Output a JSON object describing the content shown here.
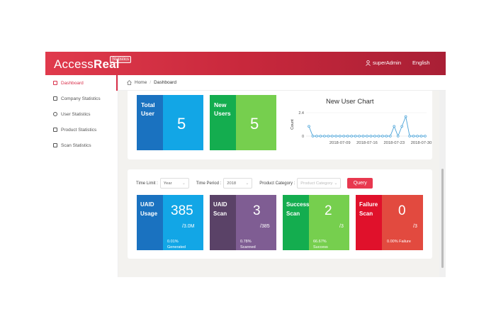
{
  "header": {
    "logo_light": "Access",
    "logo_bold": "Real",
    "logo_tag": "Statistics",
    "user": "superAdmin",
    "language": "English"
  },
  "sidebar": {
    "items": [
      {
        "label": "Dashboard",
        "icon": "monitor-icon"
      },
      {
        "label": "Company Statistics",
        "icon": "building-icon"
      },
      {
        "label": "User Statistics",
        "icon": "user-icon"
      },
      {
        "label": "Product Statistics",
        "icon": "grid-icon"
      },
      {
        "label": "Scan Statistics",
        "icon": "scan-icon"
      }
    ]
  },
  "breadcrumb": {
    "home": "Home",
    "sep": "/",
    "current": "Dashboard"
  },
  "summary": {
    "total_users": {
      "label_1": "Total",
      "label_2": "User",
      "value": "5",
      "color_label": "#1a72c0",
      "color_value": "#12a6e6"
    },
    "new_users": {
      "label_1": "New",
      "label_2": "Users",
      "value": "5",
      "color_label": "#14ad4f",
      "color_value": "#76cf4e"
    }
  },
  "chart_data": {
    "type": "line",
    "title": "New User Chart",
    "ylabel": "Count",
    "yticks": [
      "2.4",
      "0"
    ],
    "ylim": [
      0,
      2.4
    ],
    "xticks": [
      "2018-07-09",
      "2018-07-16",
      "2018-07-23",
      "2018-07-30"
    ],
    "x": [
      "2018-07-01",
      "2018-07-02",
      "2018-07-03",
      "2018-07-04",
      "2018-07-05",
      "2018-07-06",
      "2018-07-07",
      "2018-07-08",
      "2018-07-09",
      "2018-07-10",
      "2018-07-11",
      "2018-07-12",
      "2018-07-13",
      "2018-07-14",
      "2018-07-15",
      "2018-07-16",
      "2018-07-17",
      "2018-07-18",
      "2018-07-19",
      "2018-07-20",
      "2018-07-21",
      "2018-07-22",
      "2018-07-23",
      "2018-07-24",
      "2018-07-25",
      "2018-07-26",
      "2018-07-27",
      "2018-07-28",
      "2018-07-29",
      "2018-07-30",
      "2018-07-31"
    ],
    "series": [
      {
        "values": [
          1,
          0,
          0,
          0,
          0,
          0,
          0,
          0,
          0,
          0,
          0,
          0,
          0,
          0,
          0,
          0,
          0,
          0,
          0,
          0,
          0,
          0,
          1,
          0,
          1,
          2,
          0,
          0,
          0,
          0,
          0
        ]
      }
    ],
    "color": "#4aa3d8"
  },
  "filters": {
    "time_limit_label": "Time Limit :",
    "time_limit_value": "Year",
    "time_period_label": "Time Period :",
    "time_period_value": "2018",
    "category_label": "Product Category :",
    "category_placeholder": "Product Category",
    "query_label": "Query"
  },
  "stats": [
    {
      "label_1": "UAID",
      "label_2": "Usage",
      "value": "385",
      "denominator": "/3.0M",
      "pct_1": "0.01%",
      "pct_2": "Generated",
      "color_l": "#1a72c0",
      "color_r": "#12a6e6"
    },
    {
      "label_1": "UAID",
      "label_2": "Scan",
      "value": "3",
      "denominator": "/385",
      "pct_1": "0.78%",
      "pct_2": "Scanned",
      "color_l": "#5a4267",
      "color_r": "#7f5d93"
    },
    {
      "label_1": "Success",
      "label_2": "Scan",
      "value": "2",
      "denominator": "/3",
      "pct_1": "66.67%",
      "pct_2": "Success",
      "color_l": "#14ad4f",
      "color_r": "#76cf4e"
    },
    {
      "label_1": "Failure",
      "label_2": "Scan",
      "value": "0",
      "denominator": "/3",
      "pct_1": "0.00% Failure",
      "pct_2": "",
      "color_l": "#e0112b",
      "color_r": "#e24a3f"
    }
  ]
}
